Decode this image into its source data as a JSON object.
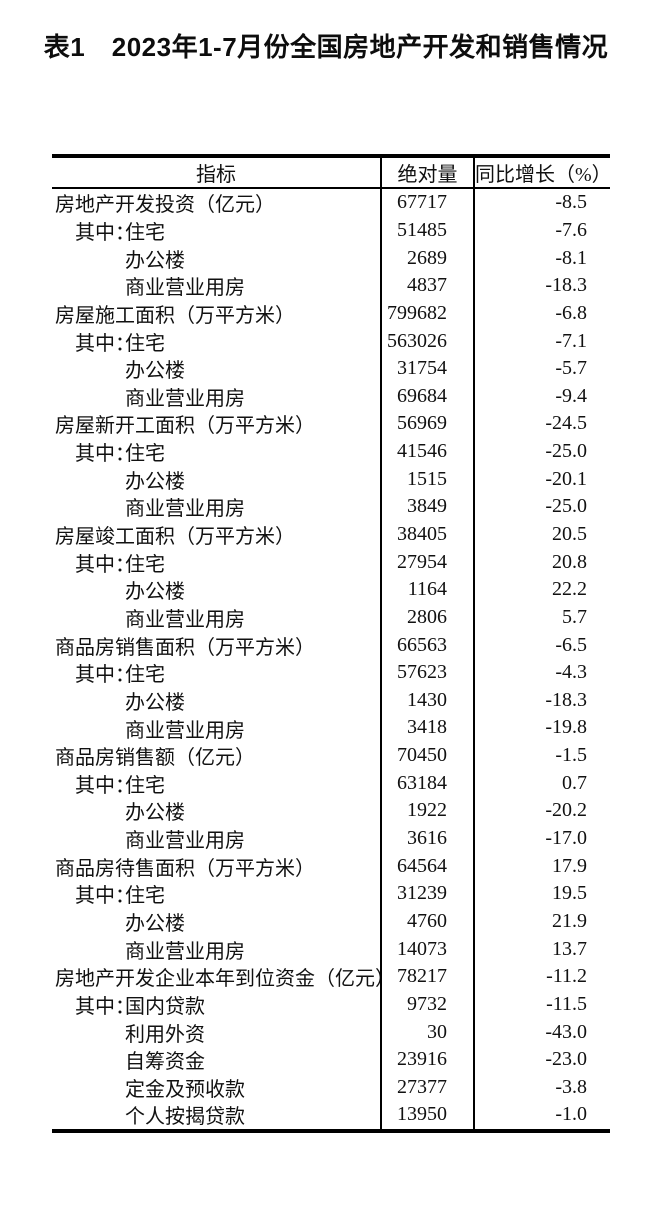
{
  "title": "表1　2023年1-7月份全国房地产开发和销售情况",
  "table": {
    "columns": [
      "指标",
      "绝对量",
      "同比增长（%）"
    ],
    "rows": [
      {
        "indicator": "房地产开发投资（亿元）",
        "level": 0,
        "abs": "67717",
        "pct": "-8.5"
      },
      {
        "indicator": "住宅",
        "prefix": "其中：",
        "level": 1,
        "abs": "51485",
        "pct": "-7.6"
      },
      {
        "indicator": "办公楼",
        "level": 1,
        "abs": "2689",
        "pct": "-8.1"
      },
      {
        "indicator": "商业营业用房",
        "level": 1,
        "abs": "4837",
        "pct": "-18.3"
      },
      {
        "indicator": "房屋施工面积（万平方米）",
        "level": 0,
        "abs": "799682",
        "pct": "-6.8"
      },
      {
        "indicator": "住宅",
        "prefix": "其中：",
        "level": 1,
        "abs": "563026",
        "pct": "-7.1"
      },
      {
        "indicator": "办公楼",
        "level": 1,
        "abs": "31754",
        "pct": "-5.7"
      },
      {
        "indicator": "商业营业用房",
        "level": 1,
        "abs": "69684",
        "pct": "-9.4"
      },
      {
        "indicator": "房屋新开工面积（万平方米）",
        "level": 0,
        "abs": "56969",
        "pct": "-24.5"
      },
      {
        "indicator": "住宅",
        "prefix": "其中：",
        "level": 1,
        "abs": "41546",
        "pct": "-25.0"
      },
      {
        "indicator": "办公楼",
        "level": 1,
        "abs": "1515",
        "pct": "-20.1"
      },
      {
        "indicator": "商业营业用房",
        "level": 1,
        "abs": "3849",
        "pct": "-25.0"
      },
      {
        "indicator": "房屋竣工面积（万平方米）",
        "level": 0,
        "abs": "38405",
        "pct": "20.5"
      },
      {
        "indicator": "住宅",
        "prefix": "其中：",
        "level": 1,
        "abs": "27954",
        "pct": "20.8"
      },
      {
        "indicator": "办公楼",
        "level": 1,
        "abs": "1164",
        "pct": "22.2"
      },
      {
        "indicator": "商业营业用房",
        "level": 1,
        "abs": "2806",
        "pct": "5.7"
      },
      {
        "indicator": "商品房销售面积（万平方米）",
        "level": 0,
        "abs": "66563",
        "pct": "-6.5"
      },
      {
        "indicator": "住宅",
        "prefix": "其中：",
        "level": 1,
        "abs": "57623",
        "pct": "-4.3"
      },
      {
        "indicator": "办公楼",
        "level": 1,
        "abs": "1430",
        "pct": "-18.3"
      },
      {
        "indicator": "商业营业用房",
        "level": 1,
        "abs": "3418",
        "pct": "-19.8"
      },
      {
        "indicator": "商品房销售额（亿元）",
        "level": 0,
        "abs": "70450",
        "pct": "-1.5"
      },
      {
        "indicator": "住宅",
        "prefix": "其中：",
        "level": 1,
        "abs": "63184",
        "pct": "0.7"
      },
      {
        "indicator": "办公楼",
        "level": 1,
        "abs": "1922",
        "pct": "-20.2"
      },
      {
        "indicator": "商业营业用房",
        "level": 1,
        "abs": "3616",
        "pct": "-17.0"
      },
      {
        "indicator": "商品房待售面积（万平方米）",
        "level": 0,
        "abs": "64564",
        "pct": "17.9"
      },
      {
        "indicator": "住宅",
        "prefix": "其中：",
        "level": 1,
        "abs": "31239",
        "pct": "19.5"
      },
      {
        "indicator": "办公楼",
        "level": 1,
        "abs": "4760",
        "pct": "21.9"
      },
      {
        "indicator": "商业营业用房",
        "level": 1,
        "abs": "14073",
        "pct": "13.7"
      },
      {
        "indicator": "房地产开发企业本年到位资金（亿元）",
        "level": 0,
        "abs": "78217",
        "pct": "-11.2"
      },
      {
        "indicator": "国内贷款",
        "prefix": "其中：",
        "level": 1,
        "abs": "9732",
        "pct": "-11.5"
      },
      {
        "indicator": "利用外资",
        "level": 1,
        "abs": "30",
        "pct": "-43.0"
      },
      {
        "indicator": "自筹资金",
        "level": 1,
        "abs": "23916",
        "pct": "-23.0"
      },
      {
        "indicator": "定金及预收款",
        "level": 1,
        "abs": "27377",
        "pct": "-3.8"
      },
      {
        "indicator": "个人按揭贷款",
        "level": 1,
        "abs": "13950",
        "pct": "-1.0"
      }
    ]
  }
}
